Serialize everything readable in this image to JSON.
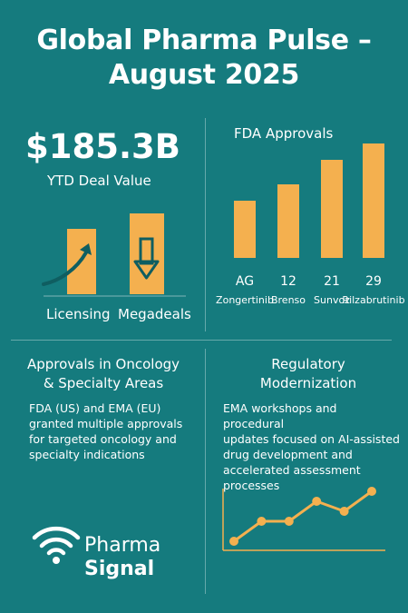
{
  "title": {
    "line1": "Global Pharma Pulse –",
    "line2": "August 2025"
  },
  "deal": {
    "value": "$185.3B",
    "label": "YTD Deal Value",
    "categories": [
      "Licensing",
      "Megadeals"
    ],
    "icons": [
      "arrow-up-right-icon",
      "arrow-down-icon"
    ]
  },
  "fda": {
    "title": "FDA Approvals",
    "chart_data": {
      "type": "bar",
      "categories": [
        "Zongertinib",
        "Brensocatib",
        "Sunvozertinib",
        "Rilzabrutinib"
      ],
      "category_labels": [
        "Zongertinib",
        "Brenso",
        "Sunvoz",
        "Rilzabrutinib"
      ],
      "values": [
        7,
        9,
        12,
        14
      ],
      "value_labels": [
        "AG",
        "12",
        "21",
        "29"
      ],
      "color": "#f4b04f"
    }
  },
  "oncology": {
    "heading_line1": "Approvals in Oncology",
    "heading_line2": "& Specialty Areas",
    "body_lines": [
      "FDA (US) and EMA (EU)",
      "granted multiple approvals",
      "for targeted oncology and",
      "specialty indications"
    ]
  },
  "regulatory": {
    "heading_line1": "Regulatory",
    "heading_line2": "Modernization",
    "body_lines": [
      "EMA workshops and procedural",
      "updates focused on AI-assisted",
      "drug development and",
      "accelerated assessment",
      "processes"
    ],
    "chart_data": {
      "type": "line",
      "x": [
        1,
        2,
        3,
        4,
        5,
        6
      ],
      "values": [
        1,
        3,
        3,
        5,
        4,
        6
      ],
      "color": "#f4b04f"
    }
  },
  "logo": {
    "word1": "Pharma",
    "word2": "Signal",
    "icon": "signal-wifi-icon"
  },
  "colors": {
    "background": "#157b7e",
    "accent": "#f4b04f",
    "text": "#ffffff"
  }
}
